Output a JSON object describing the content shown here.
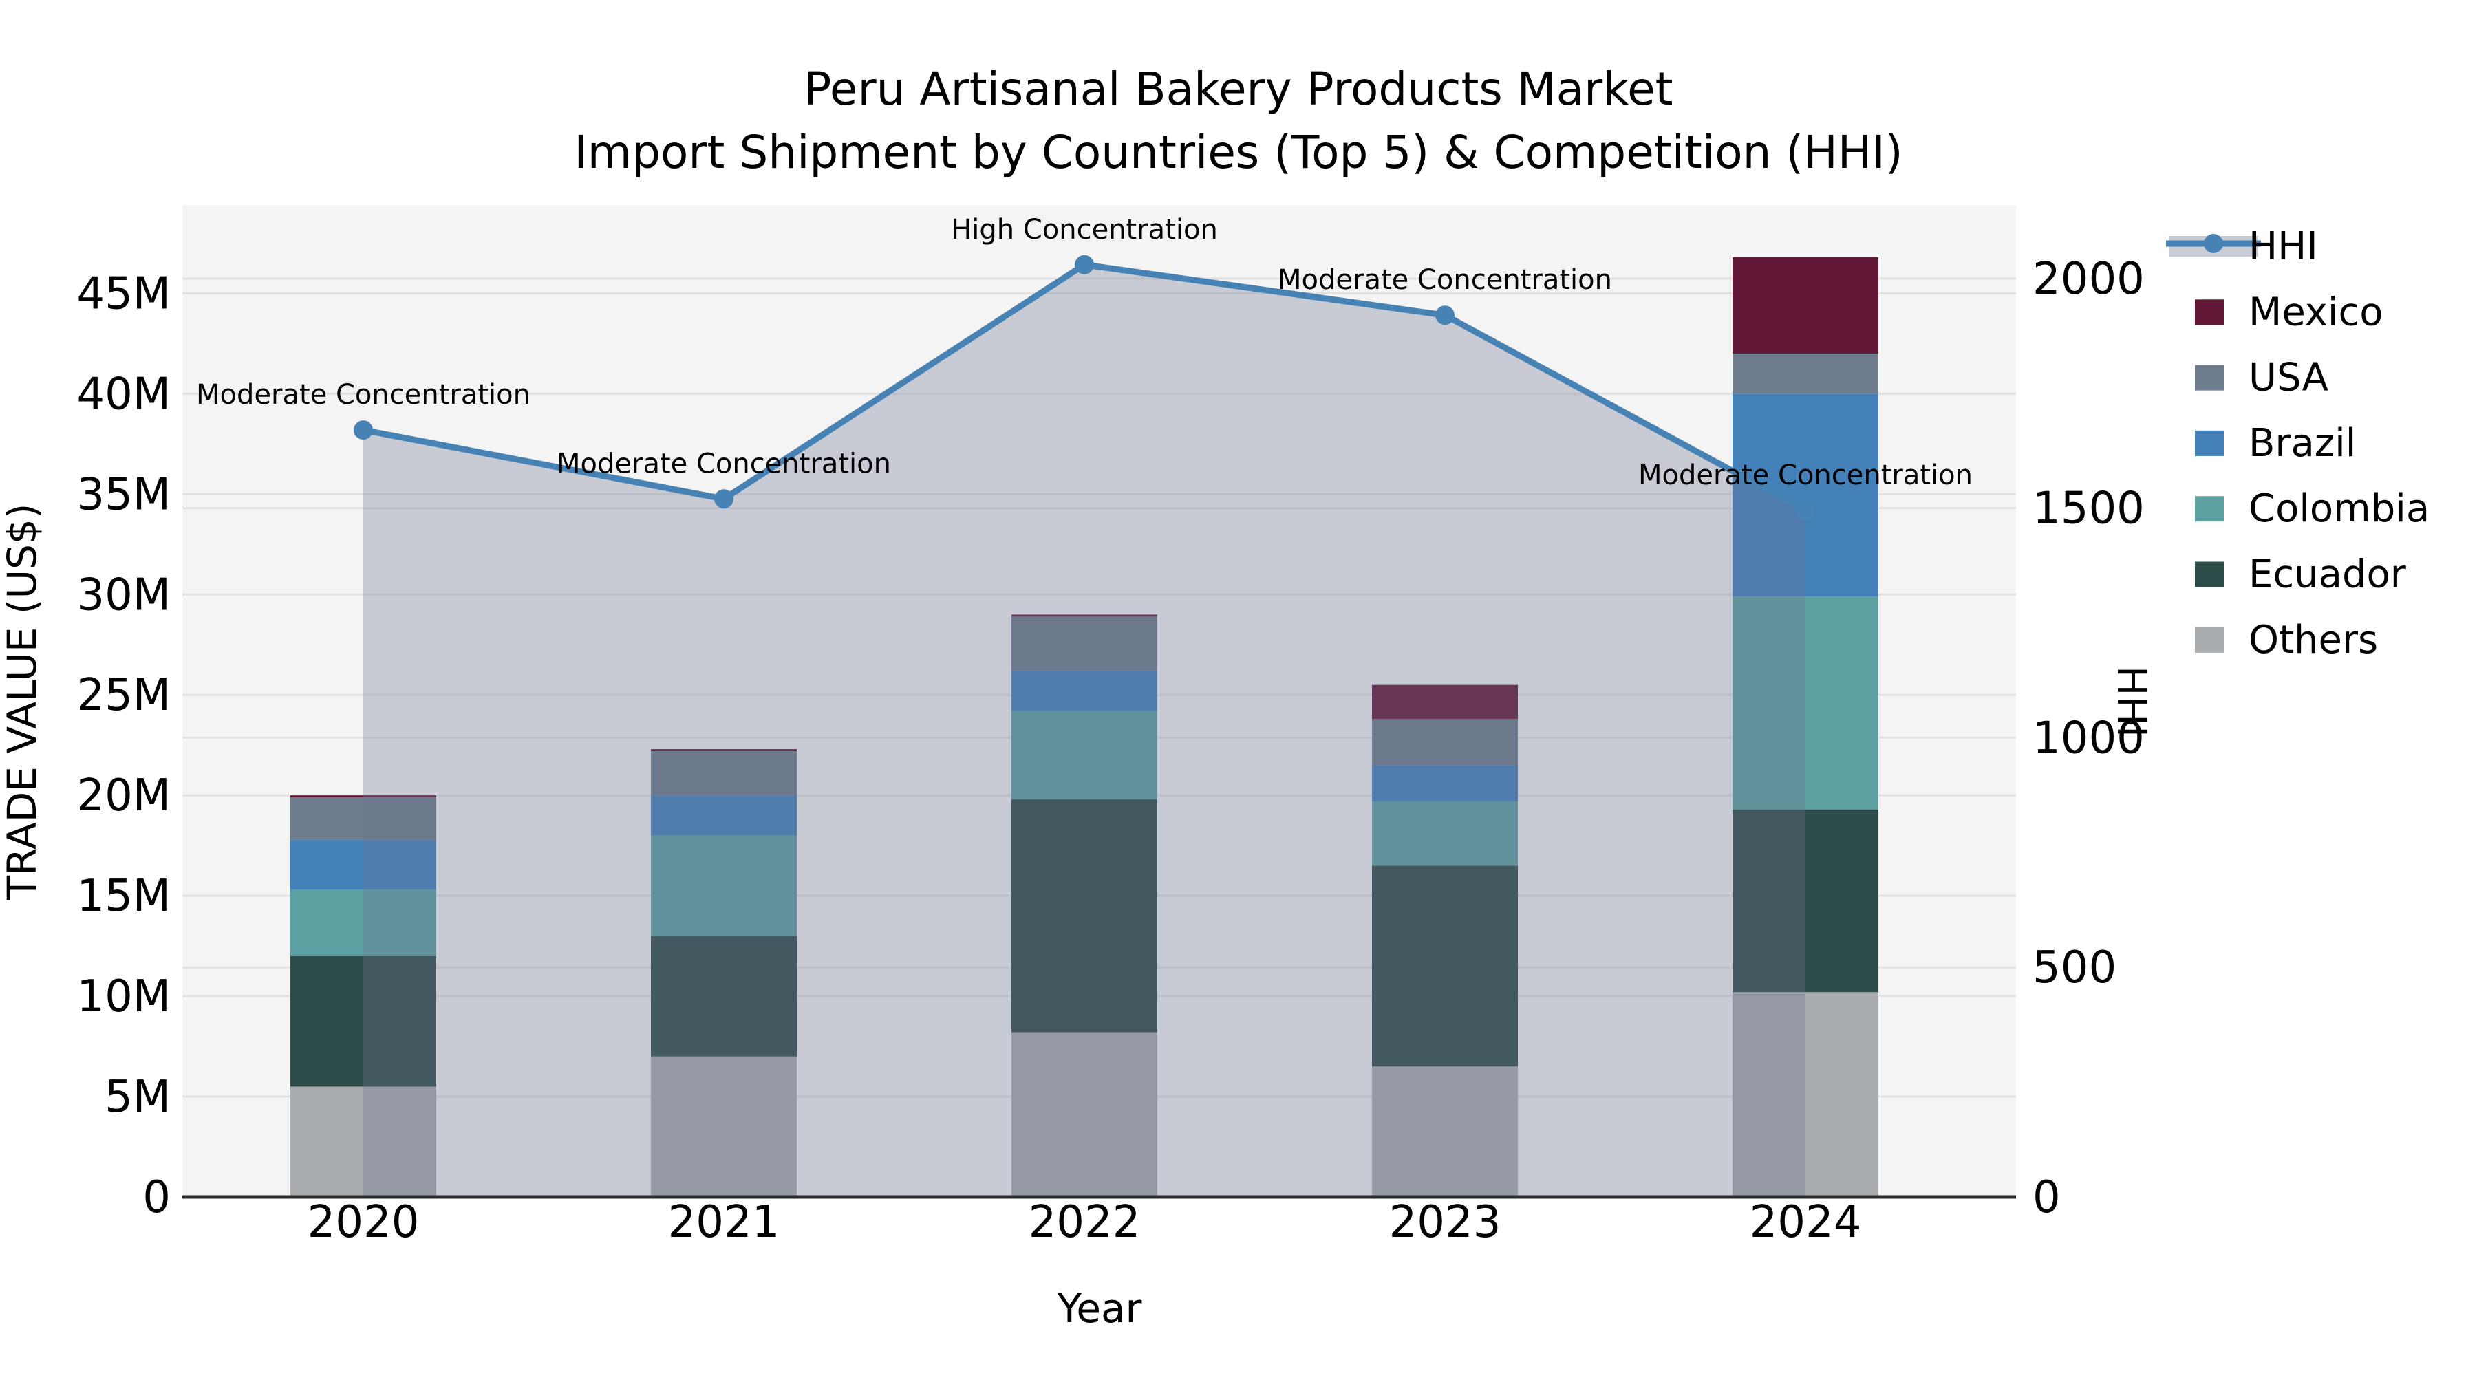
{
  "title": {
    "line1": "Peru Artisanal Bakery Products Market",
    "line2": "Import Shipment by Countries (Top 5) & Competition (HHI)"
  },
  "axes": {
    "x_label": "Year",
    "y_left_label": "TRADE VALUE (US$)",
    "y_right_label": "HHI",
    "x_ticks": [
      "2020",
      "2021",
      "2022",
      "2023",
      "2024"
    ],
    "y_left_ticks": [
      "0",
      "5M",
      "10M",
      "15M",
      "20M",
      "25M",
      "30M",
      "35M",
      "40M",
      "45M"
    ],
    "y_right_ticks": [
      "0",
      "500",
      "1000",
      "1500",
      "2000"
    ]
  },
  "legend": [
    {
      "label": "HHI",
      "type": "line",
      "color": "#4682b4"
    },
    {
      "label": "Mexico",
      "type": "patch",
      "color": "#641838"
    },
    {
      "label": "USA",
      "type": "patch",
      "color": "#6e7d8d"
    },
    {
      "label": "Brazil",
      "type": "patch",
      "color": "#4381b8"
    },
    {
      "label": "Colombia",
      "type": "patch",
      "color": "#5da0a1"
    },
    {
      "label": "Ecuador",
      "type": "patch",
      "color": "#2e4c4a"
    },
    {
      "label": "Others",
      "type": "patch",
      "color": "#a9acae"
    }
  ],
  "chart_data": {
    "type": "combo-stacked-bar-line",
    "categories": [
      "2020",
      "2021",
      "2022",
      "2023",
      "2024"
    ],
    "bar_value_unit": "million US$",
    "series": [
      {
        "name": "Others",
        "color": "#a9acae",
        "values": [
          5.5,
          7.0,
          8.2,
          6.5,
          10.2
        ]
      },
      {
        "name": "Ecuador",
        "color": "#2e4c4a",
        "values": [
          6.5,
          6.0,
          11.6,
          10.0,
          9.1
        ]
      },
      {
        "name": "Colombia",
        "color": "#5da0a1",
        "values": [
          3.3,
          5.0,
          4.4,
          3.2,
          10.6
        ]
      },
      {
        "name": "Brazil",
        "color": "#4381b8",
        "values": [
          2.5,
          2.0,
          2.0,
          1.8,
          10.1
        ]
      },
      {
        "name": "USA",
        "color": "#6e7d8d",
        "values": [
          2.1,
          2.2,
          2.7,
          2.3,
          2.0
        ]
      },
      {
        "name": "Mexico",
        "color": "#641838",
        "values": [
          0.1,
          0.1,
          0.1,
          1.7,
          4.8
        ]
      }
    ],
    "bar_totals": [
      20.0,
      22.3,
      29.0,
      25.5,
      46.8
    ],
    "line_series": {
      "name": "HHI",
      "color": "#4682b4",
      "values": [
        1670,
        1520,
        2030,
        1920,
        1495
      ]
    },
    "annotations": [
      "Moderate Concentration",
      "Moderate Concentration",
      "High Concentration",
      "Moderate Concentration",
      "Moderate Concentration"
    ],
    "left_axis": {
      "label": "TRADE VALUE (US$)",
      "min": 0,
      "max": 49.4,
      "tick_step": 5,
      "tick_suffix": "M"
    },
    "right_axis": {
      "label": "HHI",
      "min": 0,
      "max": 2160,
      "tick_step": 500
    },
    "plot_bg": "#f4f4f4",
    "grid_color": "#e2e2e2",
    "axis_line_color": "#2b2b2b",
    "area_fill": "rgba(109,119,144,0.32)",
    "legend_band_fill": "#c9ccd4",
    "grid": true,
    "legend_position": "right-top-outside"
  }
}
